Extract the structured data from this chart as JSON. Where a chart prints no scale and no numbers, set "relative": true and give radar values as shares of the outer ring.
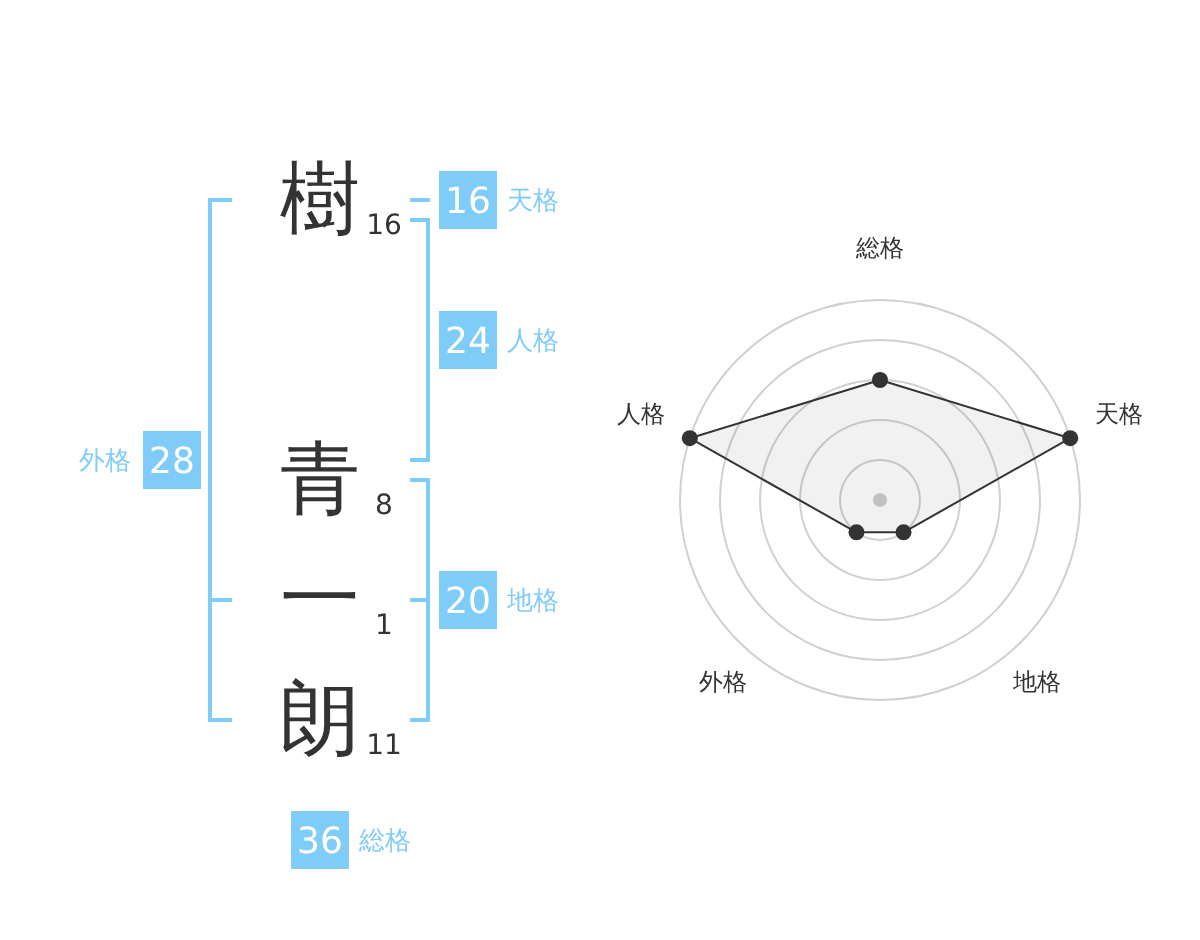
{
  "chart_data": [
    {
      "type": "other",
      "categories": [
        "樹",
        "青",
        "一",
        "朗"
      ],
      "values": [
        16,
        8,
        1,
        11
      ],
      "data_labels": true
    },
    {
      "type": "other",
      "categories": [
        "天格",
        "人格",
        "外格",
        "地格",
        "総格"
      ],
      "series": [
        {
          "color": "#80ccf8",
          "values": [
            16,
            24,
            28,
            20,
            36
          ]
        }
      ],
      "data_labels": true
    },
    {
      "type": "radar",
      "categories": [
        "総格",
        "天格",
        "地格",
        "外格",
        "人格"
      ],
      "relative": true,
      "grid": true,
      "marker": "circle",
      "series": [
        {
          "color": "#333333",
          "values": [
            0.6,
            1,
            0.2,
            0.2,
            1
          ]
        }
      ]
    }
  ]
}
